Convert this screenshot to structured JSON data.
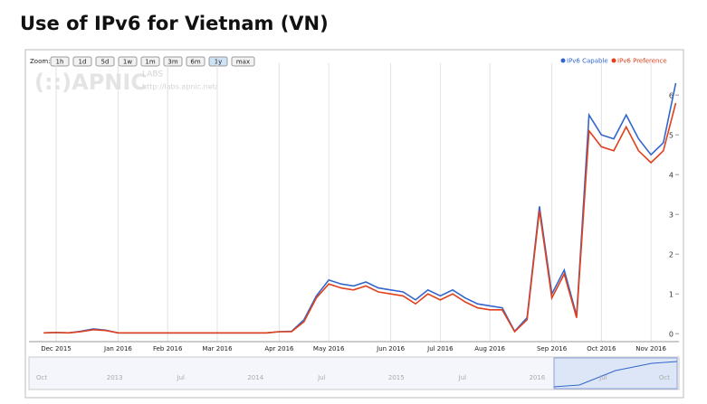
{
  "chart_data": {
    "type": "line",
    "title": "Use of IPv6 for Vietnam (VN)",
    "zoom_label": "Zoom:",
    "zoom_buttons": [
      "1h",
      "1d",
      "5d",
      "1w",
      "1m",
      "3m",
      "6m",
      "1y",
      "max"
    ],
    "watermark": [
      "(::)APNIC",
      "LABS",
      "http://labs.apnic.net/"
    ],
    "categories": [
      null,
      "Dec 2015",
      null,
      null,
      null,
      null,
      "Jan 2016",
      null,
      null,
      null,
      "Feb 2016",
      null,
      null,
      null,
      "Mar 2016",
      null,
      null,
      null,
      null,
      "Apr 2016",
      null,
      null,
      null,
      "May 2016",
      null,
      null,
      null,
      null,
      "Jun 2016",
      null,
      null,
      null,
      "Jul 2016",
      null,
      null,
      null,
      "Aug 2016",
      null,
      null,
      null,
      null,
      "Sep 2016",
      null,
      null,
      null,
      "Oct 2016",
      null,
      null,
      null,
      "Nov 2016",
      null,
      null
    ],
    "series": [
      {
        "name": "IPv6 Capable",
        "color": "#3366cc",
        "values": [
          0.02,
          0.03,
          0.02,
          0.06,
          0.12,
          0.09,
          0.02,
          0.02,
          0.02,
          0.02,
          0.02,
          0.02,
          0.02,
          0.02,
          0.02,
          0.02,
          0.02,
          0.02,
          0.02,
          0.05,
          0.06,
          0.35,
          0.95,
          1.35,
          1.25,
          1.2,
          1.3,
          1.15,
          1.1,
          1.05,
          0.85,
          1.1,
          0.95,
          1.1,
          0.9,
          0.75,
          0.7,
          0.65,
          0.06,
          0.4,
          3.2,
          1.0,
          1.6,
          0.45,
          5.5,
          5.0,
          4.9,
          5.5,
          4.9,
          4.5,
          4.8,
          6.3
        ]
      },
      {
        "name": "IPv6 Preference",
        "color": "#e0401c",
        "values": [
          0.02,
          0.03,
          0.02,
          0.05,
          0.1,
          0.08,
          0.02,
          0.02,
          0.02,
          0.02,
          0.02,
          0.02,
          0.02,
          0.02,
          0.02,
          0.02,
          0.02,
          0.02,
          0.02,
          0.05,
          0.05,
          0.3,
          0.9,
          1.25,
          1.15,
          1.1,
          1.2,
          1.05,
          1.0,
          0.95,
          0.75,
          1.0,
          0.85,
          1.0,
          0.8,
          0.65,
          0.6,
          0.6,
          0.05,
          0.35,
          3.1,
          0.9,
          1.5,
          0.4,
          5.1,
          4.7,
          4.6,
          5.2,
          4.6,
          4.3,
          4.6,
          5.8
        ]
      }
    ],
    "ylim": [
      -0.2,
      6.8
    ],
    "yticks": [
      0,
      1,
      2,
      3,
      4,
      5,
      6
    ],
    "grid": "x",
    "legend": "top-right",
    "navigator_labels": [
      "Oct",
      "2013",
      "Jul",
      "2014",
      "Jul",
      "2015",
      "Jul",
      "2016",
      "Jul",
      "Oct"
    ]
  }
}
